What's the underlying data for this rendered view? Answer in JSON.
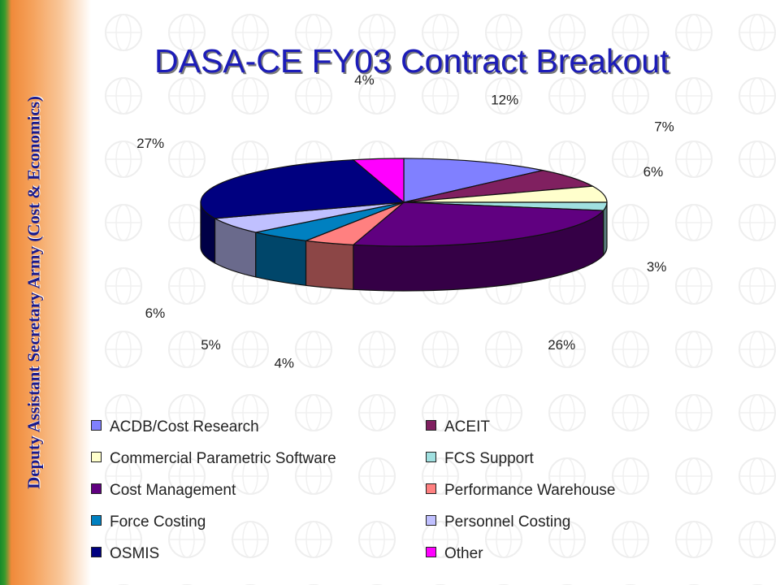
{
  "sidebar": {
    "text": "Deputy Assistant Secretary Army (Cost & Economics)"
  },
  "slide": {
    "title": "DASA-CE FY03 Contract Breakout"
  },
  "chart_data": {
    "type": "pie",
    "title": "DASA-CE FY03 Contract Breakout",
    "three_d": true,
    "legend_position": "bottom",
    "categories": [
      "ACDB/Cost Research",
      "ACEIT",
      "Commercial Parametric Software",
      "FCS Support",
      "Cost Management",
      "Performance Warehouse",
      "Force Costing",
      "Personnel Costing",
      "OSMIS",
      "Other"
    ],
    "values": [
      12,
      7,
      6,
      3,
      26,
      4,
      5,
      6,
      27,
      4
    ],
    "labels": [
      "12%",
      "7%",
      "6%",
      "3%",
      "26%",
      "4%",
      "5%",
      "6%",
      "27%",
      "4%"
    ],
    "colors": [
      "#8080ff",
      "#802060",
      "#ffffcc",
      "#a0e0e0",
      "#600080",
      "#ff8080",
      "#0080c0",
      "#c0c0ff",
      "#000080",
      "#ff00ff"
    ]
  }
}
